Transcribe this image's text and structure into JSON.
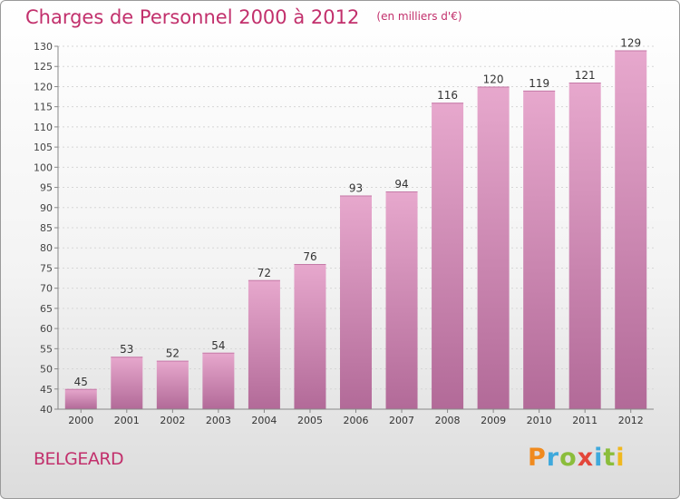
{
  "header": {
    "title": "Charges de Personnel 2000 à 2012",
    "subtitle": "(en milliers d'€)"
  },
  "footer": {
    "commune": "BELGEARD",
    "logo": "Proxiti",
    "logo_colors": [
      "#f08a1e",
      "#3fa9dc",
      "#8bbd3b",
      "#e3463a",
      "#3fa9dc",
      "#8bbd3b",
      "#f0b81e"
    ]
  },
  "chart_data": {
    "type": "bar",
    "categories": [
      "2000",
      "2001",
      "2002",
      "2003",
      "2004",
      "2005",
      "2006",
      "2007",
      "2008",
      "2009",
      "2010",
      "2011",
      "2012"
    ],
    "values": [
      45,
      53,
      52,
      54,
      72,
      76,
      93,
      94,
      116,
      120,
      119,
      121,
      129
    ],
    "title": "Charges de Personnel 2000 à 2012",
    "xlabel": "",
    "ylabel": "",
    "ylim": [
      40,
      130
    ],
    "yticks": [
      40,
      45,
      50,
      55,
      60,
      65,
      70,
      75,
      80,
      85,
      90,
      95,
      100,
      105,
      110,
      115,
      120,
      125,
      130
    ],
    "grid": true,
    "bar_color": "#d58bb7"
  }
}
